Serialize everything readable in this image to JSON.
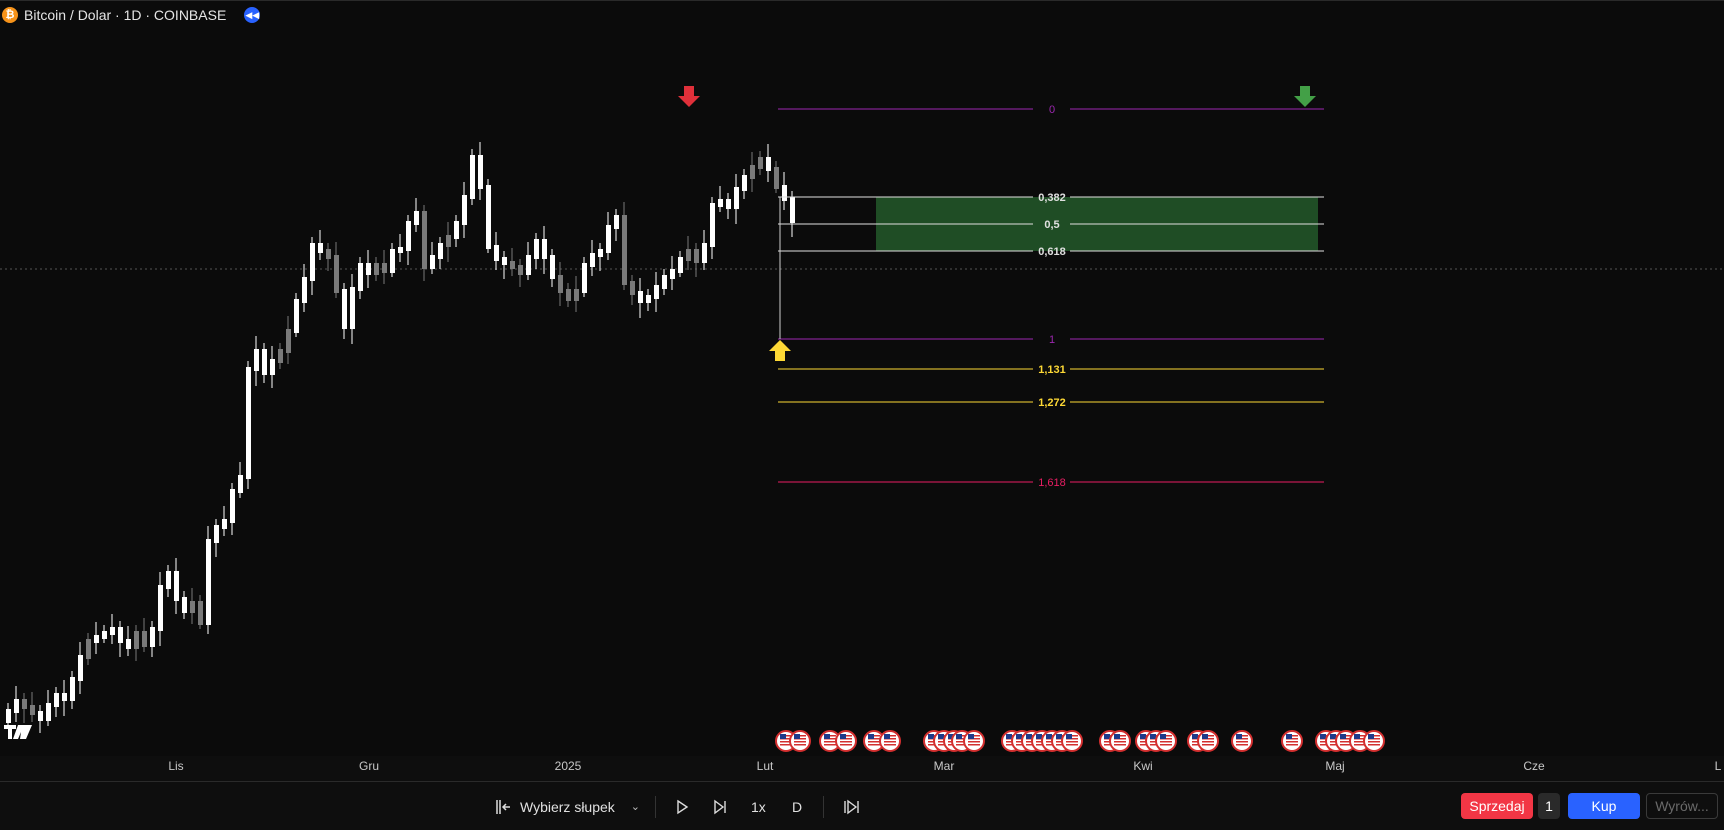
{
  "legend": {
    "coin_glyph": "₿",
    "symbol_title": "Bitcoin / Dolar · 1D · COINBASE",
    "replay_icon": "rewind-icon"
  },
  "colors": {
    "up_candle": "#ffffff",
    "down_candle": "#7a7a7a",
    "fib_zone": "#1f4d25",
    "fib_level_0_1": "#9c27b0",
    "fib_ext_yellow": "#fdd835",
    "fib_ext_red": "#e91e63",
    "arrow_red": "#e0303a",
    "arrow_green": "#43a047",
    "arrow_yellow": "#fdd835"
  },
  "fib": {
    "levels": [
      {
        "label": "0",
        "color": "#9c27b0"
      },
      {
        "label": "0,382",
        "color": "#e0e0e0"
      },
      {
        "label": "0,5",
        "color": "#e0e0e0"
      },
      {
        "label": "0,618",
        "color": "#e0e0e0"
      },
      {
        "label": "1",
        "color": "#9c27b0"
      },
      {
        "label": "1,131",
        "color": "#fdd835"
      },
      {
        "label": "1,272",
        "color": "#fdd835"
      },
      {
        "label": "1,618",
        "color": "#e91e63"
      }
    ]
  },
  "time_axis": {
    "labels": [
      "Lis",
      "Gru",
      "2025",
      "Lut",
      "Mar",
      "Kwi",
      "Maj",
      "Cze",
      "L"
    ]
  },
  "events": {
    "icon": "us-flag-event-icon"
  },
  "toolbar": {
    "select_bar_label": "Wybierz słupek",
    "speed_label": "1x",
    "interval_label": "D",
    "sell_label": "Sprzedaj",
    "qty_value": "1",
    "buy_label": "Kup",
    "advanced_label": "Wyrów..."
  }
}
